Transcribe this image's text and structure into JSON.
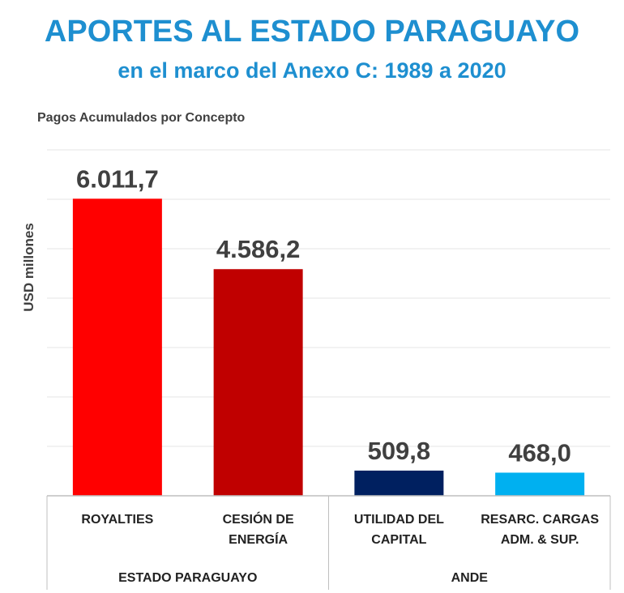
{
  "header": {
    "title": "APORTES AL ESTADO PARAGUAYO",
    "subtitle": "en el marco del Anexo C: 1989 a 2020"
  },
  "chart_caption": "Pagos Acumulados por Concepto",
  "chart_data": {
    "type": "bar",
    "title": "APORTES AL ESTADO PARAGUAYO",
    "subtitle": "en el marco del Anexo C: 1989 a 2020",
    "ylabel": "USD millones",
    "ylim": [
      0,
      7000
    ],
    "grid": true,
    "categories": [
      [
        "ROYALTIES"
      ],
      [
        "CESIÓN DE",
        "ENERGÍA"
      ],
      [
        "UTILIDAD DEL",
        "CAPITAL"
      ],
      [
        "RESARC. CARGAS",
        "ADM. & SUP."
      ]
    ],
    "values": [
      6011.7,
      4586.2,
      509.8,
      468.0
    ],
    "data_labels": [
      "6.011,7",
      "4.586,2",
      "509,8",
      "468,0"
    ],
    "colors": [
      "#ff0000",
      "#c00000",
      "#002060",
      "#00b0f0"
    ],
    "groups": [
      {
        "label": "ESTADO PARAGUAYO",
        "start": 0,
        "end": 1
      },
      {
        "label": "ANDE",
        "start": 2,
        "end": 3
      }
    ]
  }
}
